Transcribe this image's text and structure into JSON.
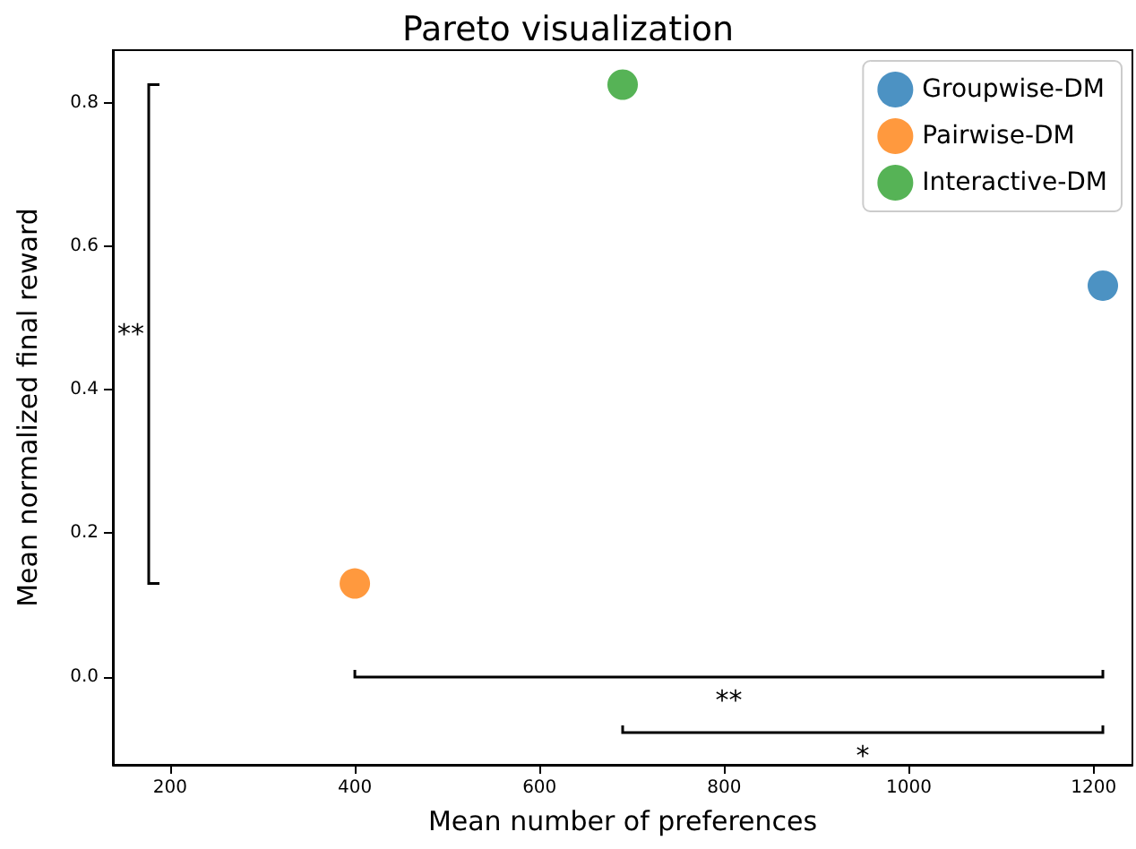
{
  "chart_data": {
    "type": "scatter",
    "title": "Pareto visualization",
    "xlabel": "Mean number of preferences",
    "ylabel": "Mean normalized final reward",
    "series": [
      {
        "name": "Groupwise-DM",
        "color": "#1f77b4",
        "x": [
          1210
        ],
        "values": [
          0.545
        ]
      },
      {
        "name": "Pairwise-DM",
        "color": "#ff7f0e",
        "x": [
          400
        ],
        "values": [
          0.13
        ]
      },
      {
        "name": "Interactive-DM",
        "color": "#2ca02c",
        "x": [
          690
        ],
        "values": [
          0.825
        ]
      }
    ],
    "xlim": [
      138,
      1242
    ],
    "xticks": [
      200,
      400,
      600,
      800,
      1000,
      1200
    ],
    "ylim": [
      -0.1225,
      0.873
    ],
    "yticks": [
      {
        "value": 0,
        "label": "0.0"
      },
      {
        "value": 0.2,
        "label": "0.2"
      },
      {
        "value": 0.4,
        "label": "0.4"
      },
      {
        "value": 0.6,
        "label": "0.6"
      },
      {
        "value": 0.8,
        "label": "0.8"
      }
    ],
    "annotations": [
      "**",
      "**",
      "*"
    ],
    "legend": "top right",
    "marker": "circle",
    "grid": false
  }
}
